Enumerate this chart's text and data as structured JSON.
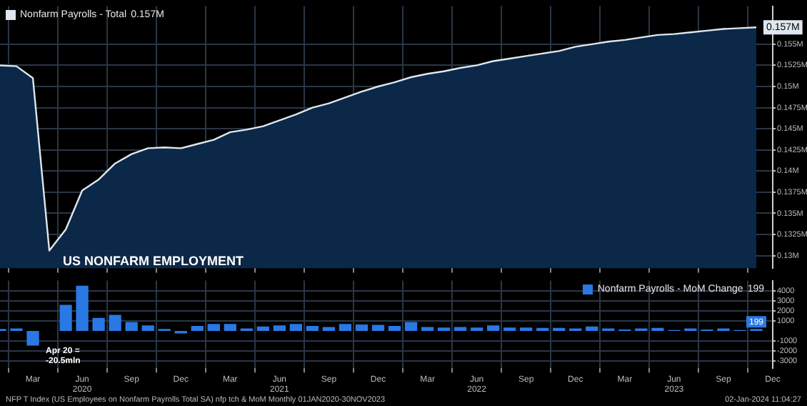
{
  "chart_data": [
    {
      "type": "area",
      "title": "US NONFARM EMPLOYMENT",
      "x": [
        "2020-01",
        "2020-02",
        "2020-03",
        "2020-04",
        "2020-05",
        "2020-06",
        "2020-07",
        "2020-08",
        "2020-09",
        "2020-10",
        "2020-11",
        "2020-12",
        "2021-01",
        "2021-02",
        "2021-03",
        "2021-04",
        "2021-05",
        "2021-06",
        "2021-07",
        "2021-08",
        "2021-09",
        "2021-10",
        "2021-11",
        "2021-12",
        "2022-01",
        "2022-02",
        "2022-03",
        "2022-04",
        "2022-05",
        "2022-06",
        "2022-07",
        "2022-08",
        "2022-09",
        "2022-10",
        "2022-11",
        "2022-12",
        "2023-01",
        "2023-02",
        "2023-03",
        "2023-04",
        "2023-05",
        "2023-06",
        "2023-07",
        "2023-08",
        "2023-09",
        "2023-10",
        "2023-11"
      ],
      "series": [
        {
          "name": "Nonfarm Payrolls - Total",
          "color": "#dfe6ee",
          "values": [
            0.1525,
            0.1524,
            0.151,
            0.1306,
            0.1331,
            0.1377,
            0.139,
            0.1409,
            0.142,
            0.1427,
            0.1428,
            0.1427,
            0.1432,
            0.1437,
            0.1446,
            0.1449,
            0.1453,
            0.146,
            0.1467,
            0.1475,
            0.148,
            0.1487,
            0.1494,
            0.15,
            0.1505,
            0.1511,
            0.1515,
            0.1518,
            0.1522,
            0.1525,
            0.153,
            0.1533,
            0.1536,
            0.1539,
            0.1542,
            0.1547,
            0.155,
            0.1553,
            0.1555,
            0.1558,
            0.1561,
            0.1562,
            0.1564,
            0.1566,
            0.1568,
            0.1569,
            0.157
          ],
          "value_labels": [
            null,
            null,
            null,
            null,
            null,
            null,
            null,
            null,
            null,
            null,
            null,
            null,
            null,
            null,
            null,
            null,
            null,
            null,
            null,
            null,
            null,
            null,
            null,
            null,
            null,
            null,
            null,
            null,
            null,
            null,
            null,
            null,
            null,
            null,
            null,
            null,
            null,
            null,
            null,
            null,
            null,
            null,
            null,
            null,
            null,
            null,
            "0.157M"
          ]
        }
      ],
      "xlim": [
        "2020-01",
        "2023-12"
      ],
      "xticks": [
        {
          "value": "2020-03",
          "label": null
        },
        {
          "value": "2020-06",
          "label": null
        },
        {
          "value": "2020-09",
          "label": null
        },
        {
          "value": "2020-12",
          "label": null
        },
        {
          "value": "2021-03",
          "label": null
        },
        {
          "value": "2021-06",
          "label": null
        },
        {
          "value": "2021-09",
          "label": null
        },
        {
          "value": "2021-12",
          "label": null
        },
        {
          "value": "2022-03",
          "label": null
        },
        {
          "value": "2022-06",
          "label": null
        },
        {
          "value": "2022-09",
          "label": null
        },
        {
          "value": "2022-12",
          "label": null
        },
        {
          "value": "2023-03",
          "label": null
        },
        {
          "value": "2023-06",
          "label": null
        },
        {
          "value": "2023-09",
          "label": null
        },
        {
          "value": "2023-12",
          "label": null
        }
      ],
      "ylim": [
        0.1285,
        0.1595
      ],
      "yticks": [
        {
          "value": 0.13,
          "label": "0.13M"
        },
        {
          "value": 0.1325,
          "label": "0.1325M"
        },
        {
          "value": 0.135,
          "label": "0.135M"
        },
        {
          "value": 0.1375,
          "label": "0.1375M"
        },
        {
          "value": 0.14,
          "label": "0.14M"
        },
        {
          "value": 0.1425,
          "label": "0.1425M"
        },
        {
          "value": 0.145,
          "label": "0.145M"
        },
        {
          "value": 0.1475,
          "label": "0.1475M"
        },
        {
          "value": 0.15,
          "label": "0.15M"
        },
        {
          "value": 0.1525,
          "label": "0.1525M"
        },
        {
          "value": 0.155,
          "label": "0.155M"
        }
      ],
      "grid": true,
      "legend": "top left",
      "tick_labels": "y"
    },
    {
      "type": "bar",
      "x": [
        "2020-01",
        "2020-02",
        "2020-03",
        "2020-04",
        "2020-05",
        "2020-06",
        "2020-07",
        "2020-08",
        "2020-09",
        "2020-10",
        "2020-11",
        "2020-12",
        "2021-01",
        "2021-02",
        "2021-03",
        "2021-04",
        "2021-05",
        "2021-06",
        "2021-07",
        "2021-08",
        "2021-09",
        "2021-10",
        "2021-11",
        "2021-12",
        "2022-01",
        "2022-02",
        "2022-03",
        "2022-04",
        "2022-05",
        "2022-06",
        "2022-07",
        "2022-08",
        "2022-09",
        "2022-10",
        "2022-11",
        "2022-12",
        "2023-01",
        "2023-02",
        "2023-03",
        "2023-04",
        "2023-05",
        "2023-06",
        "2023-07",
        "2023-08",
        "2023-09",
        "2023-10",
        "2023-11"
      ],
      "series": [
        {
          "name": "Nonfarm Payrolls - MoM Change",
          "color": "#2a78e4",
          "values": [
            200,
            250,
            -1450,
            null,
            2600,
            4500,
            1300,
            1600,
            900,
            550,
            200,
            -250,
            500,
            700,
            700,
            250,
            450,
            550,
            700,
            500,
            400,
            700,
            650,
            600,
            500,
            900,
            400,
            350,
            400,
            350,
            550,
            350,
            350,
            300,
            300,
            250,
            450,
            250,
            150,
            250,
            300,
            100,
            250,
            150,
            250,
            100,
            199
          ],
          "value_labels": [
            null,
            null,
            null,
            null,
            null,
            null,
            null,
            null,
            null,
            null,
            null,
            null,
            null,
            null,
            null,
            null,
            null,
            null,
            null,
            null,
            null,
            null,
            null,
            null,
            null,
            null,
            null,
            null,
            null,
            null,
            null,
            null,
            null,
            null,
            null,
            null,
            null,
            null,
            null,
            null,
            null,
            null,
            null,
            null,
            null,
            null,
            "199"
          ]
        }
      ],
      "xlim": [
        "2020-01",
        "2023-12"
      ],
      "xticks": [
        {
          "value": "2020-03",
          "label": "Mar"
        },
        {
          "value": "2020-06",
          "label": "Jun\n2020"
        },
        {
          "value": "2020-09",
          "label": "Sep"
        },
        {
          "value": "2020-12",
          "label": "Dec"
        },
        {
          "value": "2021-03",
          "label": "Mar"
        },
        {
          "value": "2021-06",
          "label": "Jun\n2021"
        },
        {
          "value": "2021-09",
          "label": "Sep"
        },
        {
          "value": "2021-12",
          "label": "Dec"
        },
        {
          "value": "2022-03",
          "label": "Mar"
        },
        {
          "value": "2022-06",
          "label": "Jun\n2022"
        },
        {
          "value": "2022-09",
          "label": "Sep"
        },
        {
          "value": "2022-12",
          "label": "Dec"
        },
        {
          "value": "2023-03",
          "label": "Mar"
        },
        {
          "value": "2023-06",
          "label": "Jun\n2023"
        },
        {
          "value": "2023-09",
          "label": "Sep"
        },
        {
          "value": "2023-12",
          "label": "Dec"
        }
      ],
      "ylim": [
        -3700,
        5000
      ],
      "yticks": [
        -3000,
        -2000,
        -1000,
        1000,
        2000,
        3000,
        4000
      ],
      "grid": true,
      "legend": "top right",
      "annotations": [
        "Apr 20 =\n-20.5mln",
        "NFP T Index (US Employees on Nonfarm Payrolls Total SA) nfp tch & MoM  Monthly 01JAN2020-30NOV2023",
        "02-Jan-2024 11:04:27"
      ]
    }
  ]
}
